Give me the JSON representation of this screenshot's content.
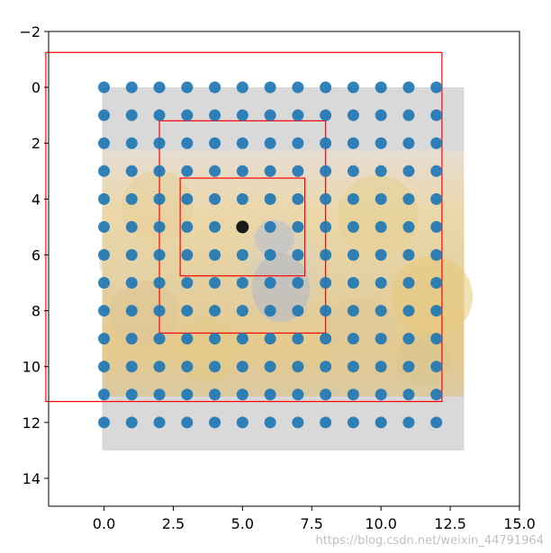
{
  "chart_data": {
    "type": "scatter",
    "title": "",
    "xlabel": "",
    "ylabel": "",
    "xlim": [
      -2,
      15
    ],
    "ylim": [
      15,
      -2
    ],
    "y_inverted": true,
    "grid": false,
    "x_ticks": [
      {
        "value": 0.0,
        "label": "0.0"
      },
      {
        "value": 2.5,
        "label": "2.5"
      },
      {
        "value": 5.0,
        "label": "5.0"
      },
      {
        "value": 7.5,
        "label": "7.5"
      },
      {
        "value": 10.0,
        "label": "10.0"
      },
      {
        "value": 12.5,
        "label": "12.5"
      },
      {
        "value": 15.0,
        "label": "15.0"
      }
    ],
    "y_ticks": [
      {
        "value": -2,
        "label": "−2"
      },
      {
        "value": 0,
        "label": "0"
      },
      {
        "value": 2,
        "label": "2"
      },
      {
        "value": 4,
        "label": "4"
      },
      {
        "value": 6,
        "label": "6"
      },
      {
        "value": 8,
        "label": "8"
      },
      {
        "value": 10,
        "label": "10"
      },
      {
        "value": 12,
        "label": "12"
      },
      {
        "value": 14,
        "label": "14"
      }
    ],
    "background_image": {
      "description": "cat on autumn leaves",
      "extent": [
        0,
        13,
        13,
        0
      ]
    },
    "grid_points": {
      "x_values": [
        0,
        1,
        2,
        3,
        4,
        5,
        6,
        7,
        8,
        9,
        10,
        11,
        12
      ],
      "y_values": [
        0,
        1,
        2,
        3,
        4,
        5,
        6,
        7,
        8,
        9,
        10,
        11,
        12
      ],
      "color": "#1f77b4"
    },
    "center_point": {
      "x": 5,
      "y": 5,
      "color": "#1a1a1a"
    },
    "rectangles": [
      {
        "x0": 2.75,
        "y0": 3.25,
        "x1": 7.25,
        "y1": 6.75,
        "color": "#ff0000"
      },
      {
        "x0": 2.0,
        "y0": 1.2,
        "x1": 8.0,
        "y1": 8.8,
        "color": "#ff0000"
      },
      {
        "x0": -2.1,
        "y0": -1.25,
        "x1": 12.2,
        "y1": 11.25,
        "color": "#ff0000"
      }
    ]
  },
  "watermark": "https://blog.csdn.net/weixin_44791964"
}
